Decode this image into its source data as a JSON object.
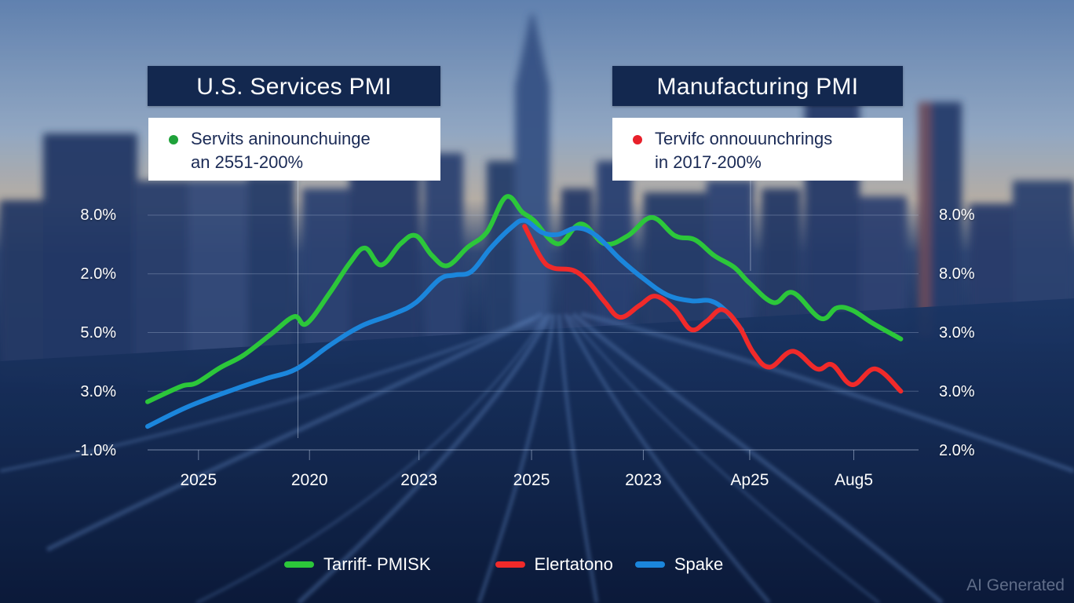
{
  "panels": {
    "left": {
      "title": "U.S. Services PMI",
      "note_line1": "Servits aninounchuinge",
      "note_line2": "an 2551-200%",
      "dot_color": "#1fa23a"
    },
    "right": {
      "title": "Manufacturing PMI",
      "note_line1": "Tervifc onnouunchrings",
      "note_line2": "in 2017-200%",
      "dot_color": "#e8202a"
    }
  },
  "watermark": "AI Generated",
  "colors": {
    "green": "#2cc73a",
    "red": "#f02a2a",
    "blue": "#1b86dc",
    "title_bg": "#13284f",
    "note_text": "#1a2a55"
  },
  "chart_data": {
    "type": "line",
    "title": "",
    "xlabel": "",
    "ylabel": "",
    "y_scale_note": "Series values are in gridline-level units: 0 = bottom gridline, 4 = top gridline (tick labels are non-monotonic as printed).",
    "ylim": [
      -0.4,
      4.2
    ],
    "xlim": [
      0,
      100
    ],
    "grid": true,
    "legend_position": "bottom-center",
    "y_ticks_left": [
      "8.0%",
      "2.0%",
      "5.0%",
      "3.0%",
      "-1.0%"
    ],
    "y_ticks_right": [
      "8.0%",
      "8.0%",
      "3.0%",
      "3.0%",
      "2.0%"
    ],
    "y_tick_levels": [
      4,
      3,
      2,
      1,
      0
    ],
    "x_tick_labels": [
      "2025",
      "2020",
      "2023",
      "2025",
      "2023",
      "Ap25",
      "Aug5"
    ],
    "x_tick_positions": [
      6.6,
      21.0,
      35.2,
      49.8,
      64.3,
      78.1,
      91.6
    ],
    "vertical_reference_lines": [
      19.5,
      78.2
    ],
    "series": [
      {
        "name": "Tarriff- PMISK",
        "color": "#2cc73a",
        "x": [
          0,
          4.3,
          6.3,
          9.4,
          12.4,
          16.0,
          19.0,
          20.6,
          23.6,
          26.2,
          28.2,
          30.3,
          32.8,
          34.8,
          36.9,
          38.9,
          41.5,
          44.0,
          46.5,
          48.6,
          50.1,
          53.2,
          56.2,
          59.3,
          62.3,
          65.4,
          68.4,
          71.0,
          73.5,
          76.1,
          78.1,
          81.2,
          83.7,
          87.3,
          89.4,
          91.4,
          93.9,
          97.7
        ],
        "y": [
          0.82,
          1.08,
          1.14,
          1.4,
          1.61,
          1.97,
          2.27,
          2.15,
          2.67,
          3.18,
          3.44,
          3.15,
          3.51,
          3.65,
          3.31,
          3.14,
          3.45,
          3.71,
          4.31,
          4.05,
          3.91,
          3.51,
          3.85,
          3.51,
          3.65,
          3.96,
          3.65,
          3.58,
          3.31,
          3.11,
          2.84,
          2.51,
          2.68,
          2.24,
          2.42,
          2.38,
          2.17,
          1.89
        ]
      },
      {
        "name": "Elertatono",
        "color": "#f02a2a",
        "x": [
          48.9,
          51.1,
          52.6,
          55.2,
          57.2,
          59.3,
          61.3,
          63.8,
          65.9,
          68.4,
          70.5,
          72.5,
          74.5,
          76.6,
          78.6,
          80.7,
          83.7,
          86.8,
          88.8,
          91.4,
          94.4,
          97.7
        ],
        "y": [
          3.81,
          3.26,
          3.1,
          3.06,
          2.86,
          2.52,
          2.26,
          2.46,
          2.62,
          2.39,
          2.05,
          2.19,
          2.39,
          2.13,
          1.65,
          1.41,
          1.68,
          1.38,
          1.45,
          1.11,
          1.38,
          1.0
        ]
      },
      {
        "name": "Spake",
        "color": "#1b86dc",
        "x": [
          0,
          5.3,
          11.4,
          15.5,
          19.3,
          23.6,
          27.7,
          31.8,
          34.8,
          37.9,
          39.9,
          42.0,
          44.5,
          47.1,
          48.9,
          51.1,
          53.2,
          55.7,
          58.2,
          61.3,
          64.4,
          67.4,
          70.5,
          73.0,
          75.0,
          77.1
        ],
        "y": [
          0.4,
          0.74,
          1.04,
          1.22,
          1.38,
          1.78,
          2.11,
          2.31,
          2.51,
          2.91,
          2.98,
          3.04,
          3.44,
          3.78,
          3.91,
          3.71,
          3.67,
          3.78,
          3.65,
          3.25,
          2.91,
          2.64,
          2.54,
          2.54,
          2.37,
          2.04
        ]
      }
    ]
  }
}
